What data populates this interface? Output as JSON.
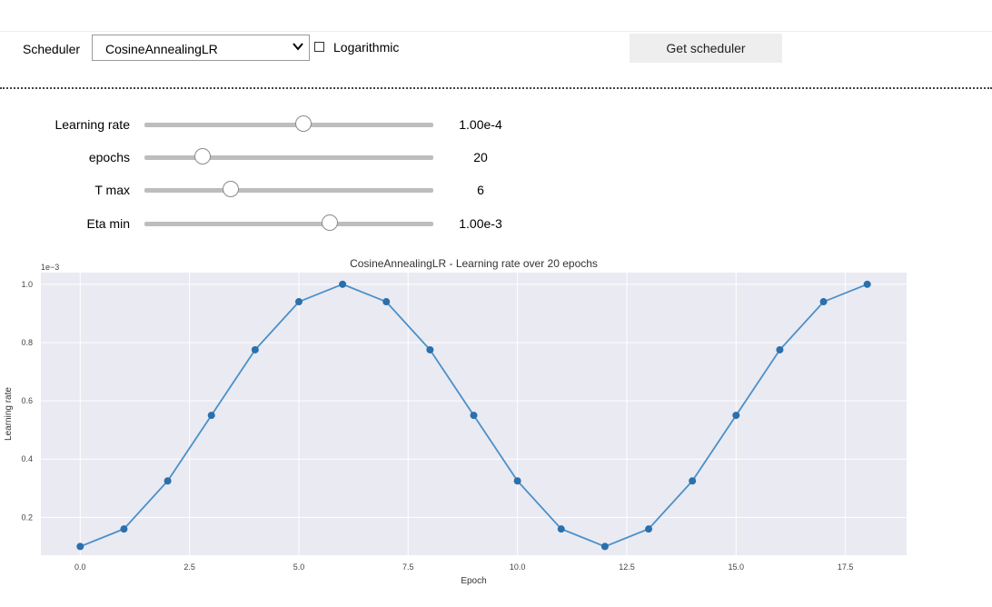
{
  "controls": {
    "scheduler_label": "Scheduler",
    "scheduler_value": "CosineAnnealingLR",
    "log_checked": false,
    "log_label": "Logarithmic",
    "get_button": "Get scheduler"
  },
  "sliders": [
    {
      "label": "Learning rate",
      "value": "1.00e-4",
      "fraction": 0.55
    },
    {
      "label": "epochs",
      "value": "20",
      "fraction": 0.2
    },
    {
      "label": "T max",
      "value": "6",
      "fraction": 0.3
    },
    {
      "label": "Eta min",
      "value": "1.00e-3",
      "fraction": 0.64
    }
  ],
  "chart_data": {
    "type": "line",
    "title": "CosineAnnealingLR - Learning rate over 20 epochs",
    "xlabel": "Epoch",
    "ylabel": "Learning rate",
    "offset_label": "1e−3",
    "xlim": [
      -0.9,
      18.9
    ],
    "ylim": [
      0.07,
      1.04
    ],
    "xticks": [
      0.0,
      2.5,
      5.0,
      7.5,
      10.0,
      12.5,
      15.0,
      17.5
    ],
    "xtick_labels": [
      "0.0",
      "2.5",
      "5.0",
      "7.5",
      "10.0",
      "12.5",
      "15.0",
      "17.5"
    ],
    "yticks": [
      0.2,
      0.4,
      0.6,
      0.8,
      1.0
    ],
    "ytick_labels": [
      "0.2",
      "0.4",
      "0.6",
      "0.8",
      "1.0"
    ],
    "grid": true,
    "series": [
      {
        "x": [
          0,
          1,
          2,
          3,
          4,
          5,
          6,
          7,
          8,
          9,
          10,
          11,
          12,
          13,
          14,
          15,
          16,
          17,
          18
        ],
        "y": [
          0.1,
          0.16,
          0.325,
          0.55,
          0.775,
          0.94,
          1.0,
          0.94,
          0.775,
          0.55,
          0.325,
          0.16,
          0.1,
          0.16,
          0.325,
          0.55,
          0.775,
          0.94,
          1.0
        ]
      }
    ],
    "colors": {
      "line": "#4a90c8",
      "marker": "#2b6fab",
      "bg": "#eaeaf2",
      "grid": "#ffffff"
    }
  }
}
